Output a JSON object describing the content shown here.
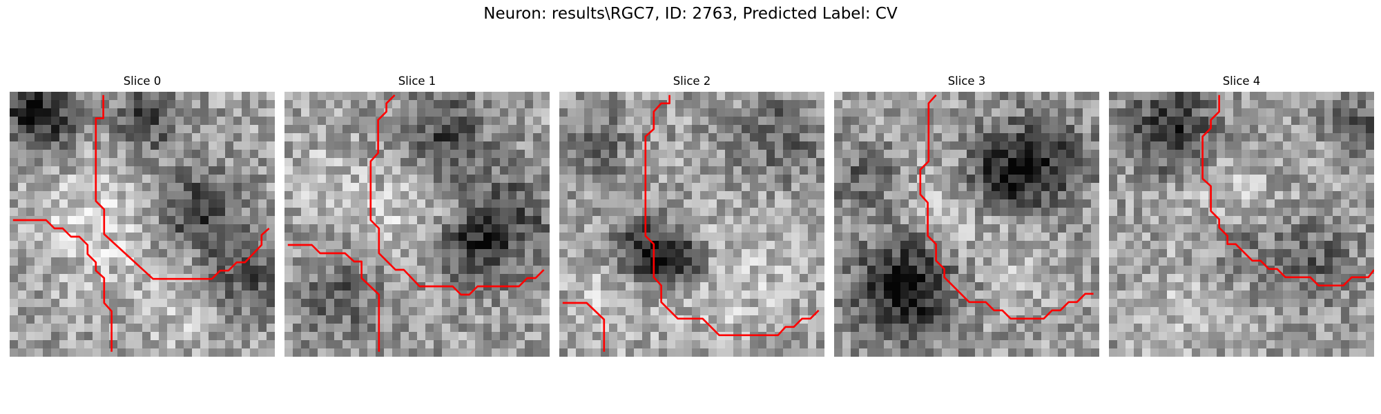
{
  "figure": {
    "title": "Neuron: results\\RGC7, ID: 2763, Predicted Label: CV"
  },
  "panels": [
    {
      "title": "Slice 0"
    },
    {
      "title": "Slice 1"
    },
    {
      "title": "Slice 2"
    },
    {
      "title": "Slice 3"
    },
    {
      "title": "Slice 4"
    }
  ],
  "colors": {
    "trace": "#ff0000",
    "background": "#ffffff"
  }
}
